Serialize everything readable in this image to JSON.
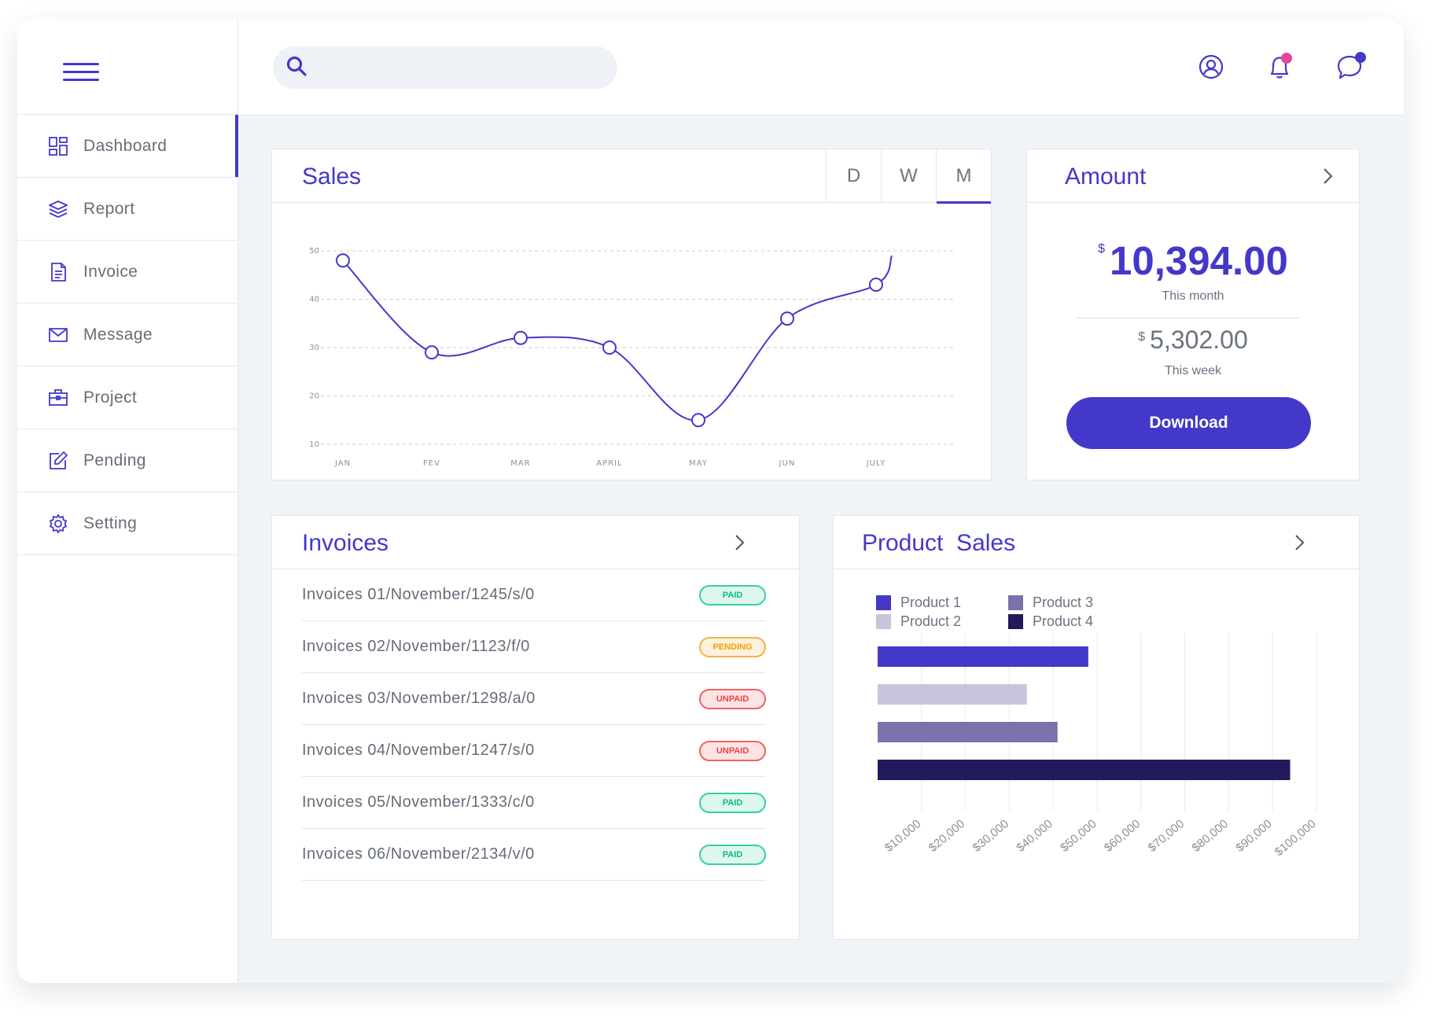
{
  "search": {
    "placeholder": ""
  },
  "sidebar": {
    "items": [
      {
        "label": "Dashboard",
        "icon": "dashboard-icon",
        "active": true
      },
      {
        "label": "Report",
        "icon": "layers-icon"
      },
      {
        "label": "Invoice",
        "icon": "document-icon"
      },
      {
        "label": "Message",
        "icon": "mail-icon"
      },
      {
        "label": "Project",
        "icon": "briefcase-icon"
      },
      {
        "label": "Pending",
        "icon": "edit-icon"
      },
      {
        "label": "Setting",
        "icon": "gear-icon"
      }
    ]
  },
  "header": {
    "icons": [
      "user-icon",
      "bell-icon",
      "chat-icon"
    ],
    "notification_dot_color": "#e0489b",
    "chat_dot_color": "#4338ca"
  },
  "colors": {
    "accent": "#4338ca",
    "paid": "#10b981",
    "pending": "#f59e0b",
    "unpaid": "#ef4444"
  },
  "sales": {
    "title": "Sales",
    "tabs": [
      "D",
      "W",
      "M"
    ],
    "active_tab": "M"
  },
  "amount": {
    "title": "Amount",
    "currency": "$",
    "month_value": "10,394.00",
    "month_label": "This month",
    "week_value": "5,302.00",
    "week_label": "This week",
    "download_label": "Download"
  },
  "invoices": {
    "title": "Invoices",
    "rows": [
      {
        "text": "Invoices 01/November/1245/s/0",
        "status": "PAID"
      },
      {
        "text": "Invoices 02/November/1123/f/0",
        "status": "PENDING"
      },
      {
        "text": "Invoices 03/November/1298/a/0",
        "status": "UNPAID"
      },
      {
        "text": "Invoices 04/November/1247/s/0",
        "status": "UNPAID"
      },
      {
        "text": "Invoices 05/November/1333/c/0",
        "status": "PAID"
      },
      {
        "text": "Invoices 06/November/2134/v/0",
        "status": "PAID"
      }
    ]
  },
  "product_sales": {
    "title": "Product  Sales"
  },
  "chart_data": [
    {
      "type": "line",
      "title": "Sales",
      "x": [
        "JAN",
        "FEV",
        "MAR",
        "APRIL",
        "MAY",
        "JUN",
        "JULY"
      ],
      "y_ticks": [
        10,
        20,
        30,
        40,
        50
      ],
      "ylim": [
        10,
        50
      ],
      "grid": true,
      "series": [
        {
          "values": [
            48,
            29,
            32,
            30,
            15,
            36,
            43
          ]
        }
      ],
      "color": "#4338ca"
    },
    {
      "type": "bar",
      "orientation": "horizontal",
      "title": "Product  Sales",
      "categories": [
        "Product 1",
        "Product 2",
        "Product 3",
        "Product 4"
      ],
      "values": [
        48000,
        34000,
        41000,
        94000
      ],
      "colors": [
        "#4338ca",
        "#c8c4dc",
        "#7b72ab",
        "#211a5c"
      ],
      "x_ticks": [
        "$10,000",
        "$20,000",
        "$30,000",
        "$40,000",
        "$50,000",
        "$60,000",
        "$70,000",
        "$80,000",
        "$90,000",
        "$100,000"
      ],
      "xlim": [
        0,
        100000
      ],
      "grid": true,
      "legend": "top-left"
    }
  ]
}
